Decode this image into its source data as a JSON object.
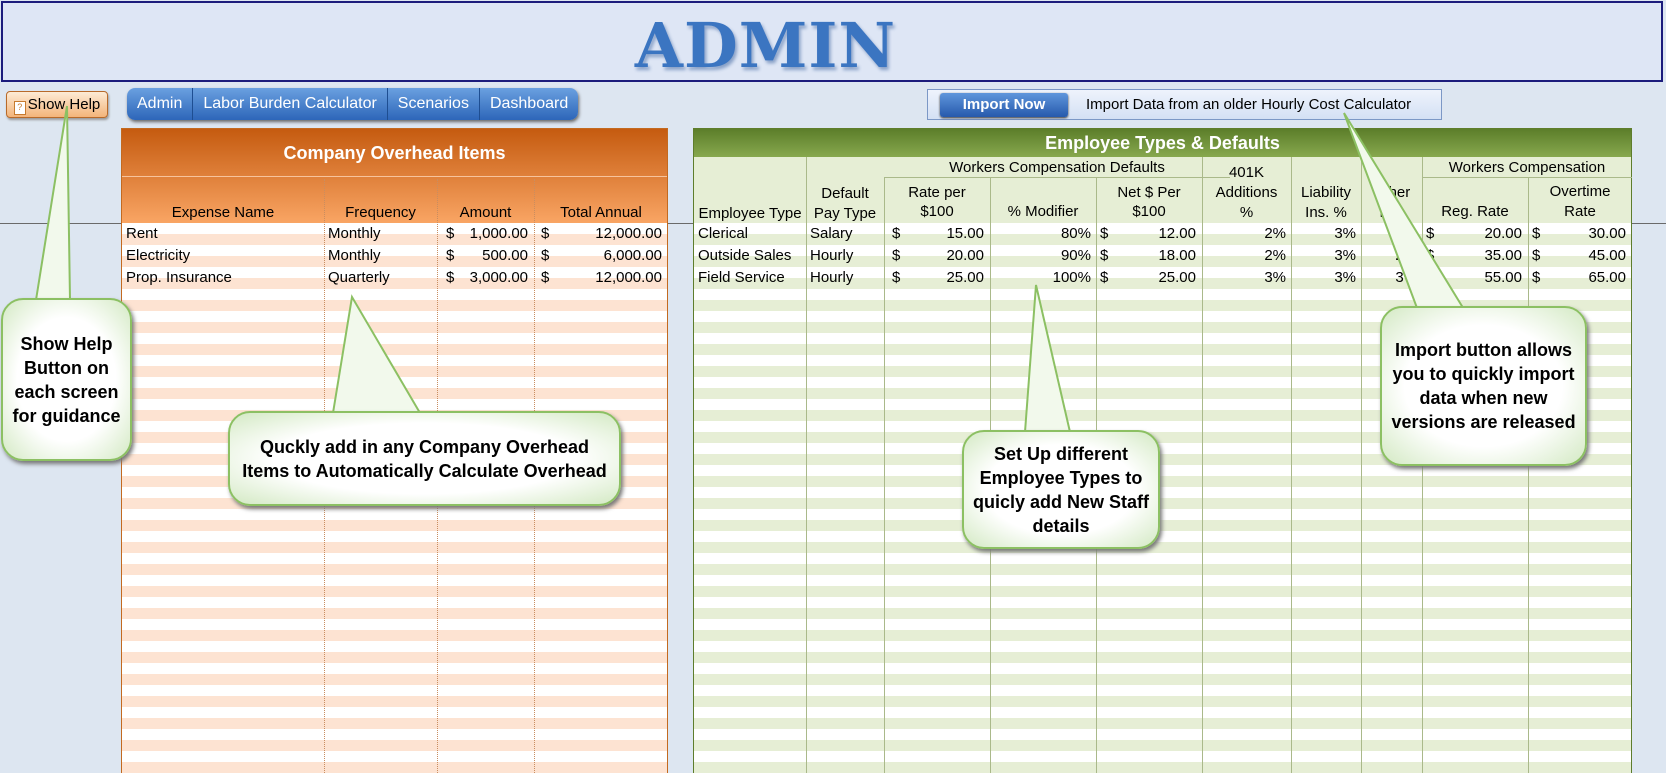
{
  "banner": {
    "title": "ADMIN"
  },
  "toolbar": {
    "show_help_label": "Show Help"
  },
  "nav": {
    "tabs": [
      "Admin",
      "Labor Burden Calculator",
      "Scenarios",
      "Dashboard"
    ]
  },
  "import": {
    "button_label": "Import Now",
    "description": "Import Data from an older Hourly Cost Calculator"
  },
  "overhead": {
    "title": "Company Overhead Items",
    "columns": [
      "Expense Name",
      "Frequency",
      "Amount",
      "Total Annual"
    ],
    "rows": [
      {
        "name": "Rent",
        "frequency": "Monthly",
        "amount": "1,000.00",
        "total": "12,000.00"
      },
      {
        "name": "Electricity",
        "frequency": "Monthly",
        "amount": "500.00",
        "total": "6,000.00"
      },
      {
        "name": "Prop. Insurance",
        "frequency": "Quarterly",
        "amount": "3,000.00",
        "total": "12,000.00"
      }
    ],
    "currency": "$"
  },
  "employees": {
    "title": "Employee Types & Defaults",
    "group_wc_defaults": "Workers Compensation Defaults",
    "group_wc": "Workers Compensation",
    "columns": {
      "type": "Employee Type",
      "pay_type_1": "Default",
      "pay_type_2": "Pay Type",
      "rate_1": "Rate per",
      "rate_2": "$100",
      "modifier": "% Modifier",
      "net_1": "Net $ Per",
      "net_2": "$100",
      "k401_1": "401K",
      "k401_2": "Additions",
      "k401_3": "%",
      "liab_1": "Liability",
      "liab_2": "Ins. %",
      "other_1": "Other",
      "other_2": "Ins.",
      "reg_rate": "Reg. Rate",
      "ot_1": "Overtime",
      "ot_2": "Rate"
    },
    "rows": [
      {
        "type": "Clerical",
        "pay": "Salary",
        "rate": "15.00",
        "modifier": "80%",
        "net": "12.00",
        "k401": "2%",
        "liab": "3%",
        "other": "2%",
        "reg": "20.00",
        "ot": "30.00"
      },
      {
        "type": "Outside Sales",
        "pay": "Hourly",
        "rate": "20.00",
        "modifier": "90%",
        "net": "18.00",
        "k401": "2%",
        "liab": "3%",
        "other": "2%",
        "reg": "35.00",
        "ot": "45.00"
      },
      {
        "type": "Field Service",
        "pay": "Hourly",
        "rate": "25.00",
        "modifier": "100%",
        "net": "25.00",
        "k401": "3%",
        "liab": "3%",
        "other": "3%",
        "reg": "55.00",
        "ot": "65.00"
      }
    ],
    "currency": "$"
  },
  "callouts": {
    "show_help": "Show Help Button on each screen for guidance",
    "overhead": "Quckly add in any Company Overhead Items to Automatically Calculate Overhead",
    "employee": "Set Up different Employee Types to quicly add New Staff details",
    "import": "Import button allows you to quickly import data when new versions are released"
  },
  "colors": {
    "banner_title": "#3b75c1",
    "overhead_header": "#e0782c",
    "employee_header": "#6f913a",
    "nav_tab": "#3a74c6",
    "callout_border": "#8cc063"
  }
}
